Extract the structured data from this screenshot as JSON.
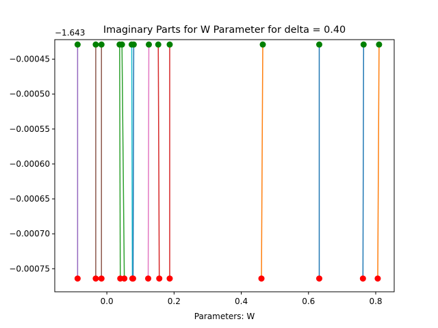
{
  "chart_data": {
    "type": "line",
    "title": "Imaginary Parts for W Parameter for delta = 0.40",
    "xlabel": "Parameters: W",
    "ylabel": "",
    "y_offset_label": "−1.643",
    "xlim": [
      -0.155,
      0.855
    ],
    "ylim": [
      -0.000783,
      -0.000422
    ],
    "x_ticks": [
      {
        "value": 0.0,
        "label": "0.0"
      },
      {
        "value": 0.2,
        "label": "0.2"
      },
      {
        "value": 0.4,
        "label": "0.4"
      },
      {
        "value": 0.6,
        "label": "0.6"
      },
      {
        "value": 0.8,
        "label": "0.8"
      }
    ],
    "y_ticks": [
      {
        "value": -0.00045,
        "label": "−0.00045"
      },
      {
        "value": -0.0005,
        "label": "−0.00050"
      },
      {
        "value": -0.00055,
        "label": "−0.00055"
      },
      {
        "value": -0.0006,
        "label": "−0.00060"
      },
      {
        "value": -0.00065,
        "label": "−0.00065"
      },
      {
        "value": -0.0007,
        "label": "−0.00070"
      },
      {
        "value": -0.00075,
        "label": "−0.00075"
      }
    ],
    "grid": false,
    "top_marker_color": "#008000",
    "bottom_marker_color": "#ff0000",
    "series": [
      {
        "x": [
          -0.087,
          -0.087
        ],
        "y": [
          -0.000429,
          -0.000764
        ],
        "color": "#9467bd"
      },
      {
        "x": [
          -0.033,
          -0.033
        ],
        "y": [
          -0.000429,
          -0.000764
        ],
        "color": "#8c564b"
      },
      {
        "x": [
          -0.016,
          -0.016
        ],
        "y": [
          -0.000429,
          -0.000764
        ],
        "color": "#8c564b"
      },
      {
        "x": [
          0.038,
          0.04
        ],
        "y": [
          -0.000429,
          -0.000764
        ],
        "color": "#2ca02c"
      },
      {
        "x": [
          0.045,
          0.052
        ],
        "y": [
          -0.000429,
          -0.000764
        ],
        "color": "#2ca02c"
      },
      {
        "x": [
          0.074,
          0.076
        ],
        "y": [
          -0.000429,
          -0.000764
        ],
        "color": "#17becf"
      },
      {
        "x": [
          0.08,
          0.078
        ],
        "y": [
          -0.000429,
          -0.000764
        ],
        "color": "#1f77b4"
      },
      {
        "x": [
          0.125,
          0.123
        ],
        "y": [
          -0.000429,
          -0.000764
        ],
        "color": "#e377c2"
      },
      {
        "x": [
          0.153,
          0.156
        ],
        "y": [
          -0.000429,
          -0.000764
        ],
        "color": "#d62728"
      },
      {
        "x": [
          0.187,
          0.187
        ],
        "y": [
          -0.000429,
          -0.000764
        ],
        "color": "#d62728"
      },
      {
        "x": [
          0.464,
          0.46
        ],
        "y": [
          -0.000429,
          -0.000764
        ],
        "color": "#ff7f0e"
      },
      {
        "x": [
          0.632,
          0.632
        ],
        "y": [
          -0.000429,
          -0.000764
        ],
        "color": "#1f77b4"
      },
      {
        "x": [
          0.764,
          0.762
        ],
        "y": [
          -0.000429,
          -0.000764
        ],
        "color": "#1f77b4"
      },
      {
        "x": [
          0.81,
          0.806
        ],
        "y": [
          -0.000429,
          -0.000764
        ],
        "color": "#ff7f0e"
      }
    ]
  }
}
